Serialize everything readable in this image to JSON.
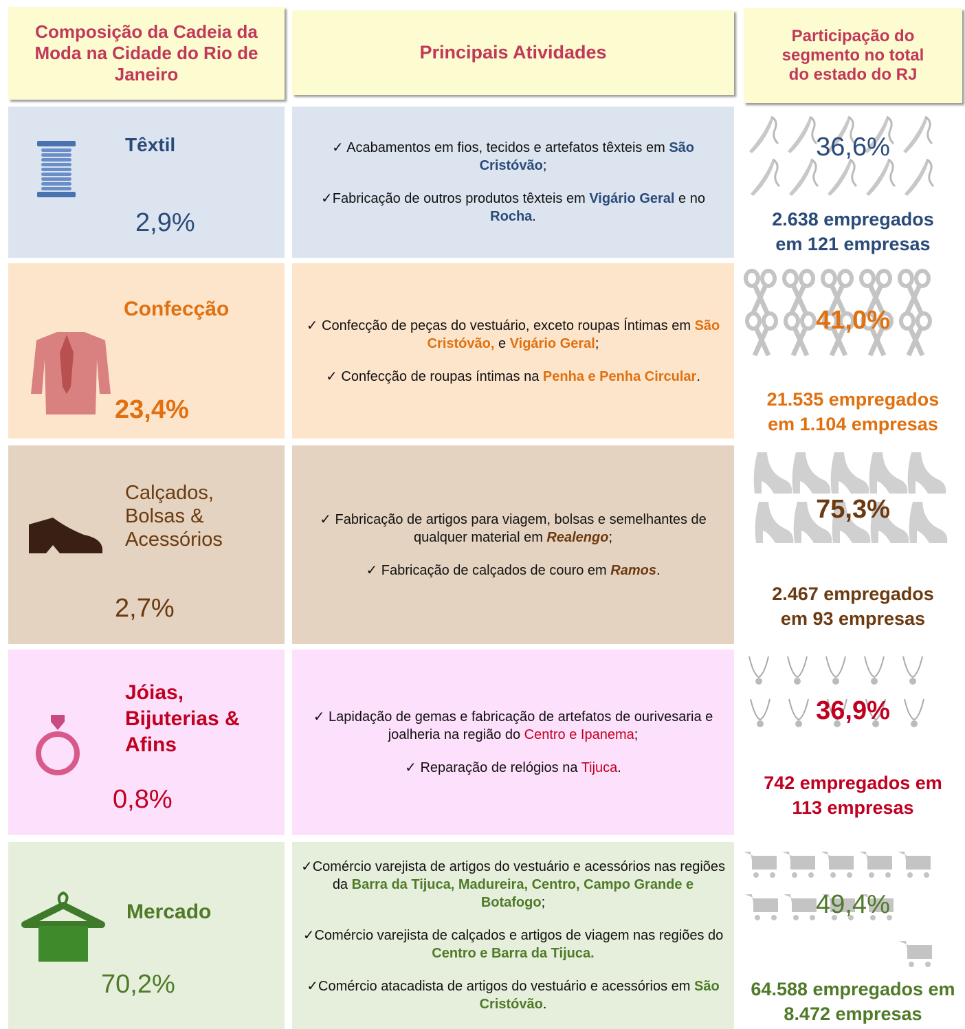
{
  "header": {
    "col1": "Composição da Cadeia da Moda na Cidade do Rio de Janeiro",
    "col2": "Principais Atividades",
    "col3": "Participação do segmento no total do estado do RJ"
  },
  "rows": [
    {
      "segment": "Têxtil",
      "share": "2,9%",
      "activities": [
        [
          "✓  Acabamentos em fios, tecidos e artefatos têxteis em ",
          "São Cristóvão",
          ";"
        ],
        [
          "✓Fabricação de outros produtos têxteis em ",
          "Vigário Geral",
          " e no ",
          "Rocha",
          "."
        ]
      ],
      "participation": "36,6%",
      "employment": "2.638 empregados em 121 empresas"
    },
    {
      "segment": "Confecção",
      "share": "23,4%",
      "activities": [
        [
          "✓ Confecção de peças do vestuário, exceto roupas Íntimas em ",
          "São Cristóvão,",
          " e ",
          "Vigário Geral",
          ";"
        ],
        [
          "✓ Confecção de roupas íntimas na ",
          "Penha e Penha Circular",
          "."
        ]
      ],
      "participation": "41,0%",
      "employment": "21.535 empregados em 1.104 empresas"
    },
    {
      "segment": "Calçados, Bolsas & Acessórios",
      "share": "2,7%",
      "activities": [
        [
          "✓ Fabricação de artigos para viagem, bolsas e semelhantes de qualquer material em ",
          "Realengo",
          ";"
        ],
        [
          "✓ Fabricação de calçados de couro em ",
          "Ramos",
          "."
        ]
      ],
      "participation": "75,3%",
      "employment": "2.467 empregados em 93 empresas"
    },
    {
      "segment": "Jóias, Bijuterias & Afins",
      "share": "0,8%",
      "activities": [
        [
          "✓ Lapidação de gemas e fabricação de artefatos de ourivesaria e joalheria na região do ",
          "Centro e Ipanema",
          ";"
        ],
        [
          "✓ Reparação de relógios na ",
          "Tijuca",
          "."
        ]
      ],
      "participation": "36,9%",
      "employment": "742 empregados em 113 empresas"
    },
    {
      "segment": "Mercado",
      "share": "70,2%",
      "activities": [
        [
          "✓Comércio varejista de artigos do vestuário e acessórios nas regiões da ",
          "Barra da Tijuca, Madureira, Centro, Campo Grande e Botafogo",
          ";"
        ],
        [
          "✓Comércio varejista de calçados e artigos de viagem nas regiões do ",
          "Centro e Barra da Tijuca."
        ],
        [
          "✓Comércio atacadista de artigos do vestuário e acessórios em ",
          "São Cristóvão",
          "."
        ]
      ],
      "participation": "49,4%",
      "employment": "64.588 empregados em 8.472 empresas"
    }
  ]
}
